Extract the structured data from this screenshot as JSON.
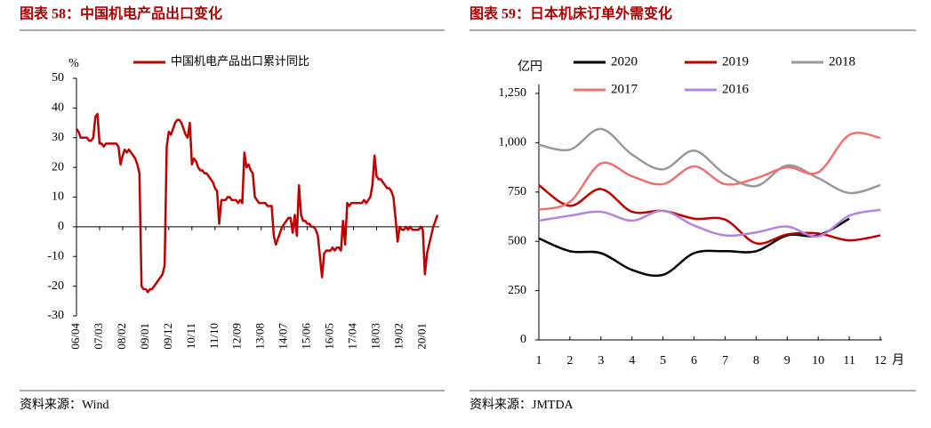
{
  "chart_data": [
    {
      "type": "line",
      "title": "图表 58：中国机电产品出口变化",
      "source": "资料来源：Wind",
      "y_label": "%",
      "categories": [
        "06/04",
        null,
        null,
        null,
        null,
        null,
        null,
        null,
        null,
        null,
        null,
        "07/03",
        null,
        null,
        null,
        null,
        null,
        null,
        null,
        null,
        null,
        null,
        "08/02",
        null,
        null,
        null,
        null,
        null,
        null,
        null,
        null,
        null,
        null,
        "09/01",
        null,
        null,
        null,
        null,
        null,
        null,
        null,
        null,
        null,
        null,
        "09/12",
        null,
        null,
        null,
        null,
        null,
        null,
        null,
        null,
        null,
        null,
        "10/11",
        null,
        null,
        null,
        null,
        null,
        null,
        null,
        null,
        null,
        null,
        "11/10",
        null,
        null,
        null,
        null,
        null,
        null,
        null,
        null,
        null,
        null,
        "12/09",
        null,
        null,
        null,
        null,
        null,
        null,
        null,
        null,
        null,
        null,
        "13/08",
        null,
        null,
        null,
        null,
        null,
        null,
        null,
        null,
        null,
        null,
        "14/07",
        null,
        null,
        null,
        null,
        null,
        null,
        null,
        null,
        null,
        null,
        "15/06",
        null,
        null,
        null,
        null,
        null,
        null,
        null,
        null,
        null,
        null,
        "16/05",
        null,
        null,
        null,
        null,
        null,
        null,
        null,
        null,
        null,
        null,
        "17/04",
        null,
        null,
        null,
        null,
        null,
        null,
        null,
        null,
        null,
        null,
        "18/03",
        null,
        null,
        null,
        null,
        null,
        null,
        null,
        null,
        null,
        null,
        "19/02",
        null,
        null,
        null,
        null,
        null,
        null,
        null,
        null,
        null,
        null,
        "20/01",
        null,
        null,
        null,
        null,
        null,
        null,
        null
      ],
      "series": [
        {
          "name": "中国机电产品出口累计同比",
          "color": "#c00000",
          "values": [
            33,
            32,
            30,
            30,
            30,
            30,
            29,
            29,
            30,
            37,
            38,
            28,
            28,
            27,
            28,
            28,
            28,
            28,
            28,
            28,
            27,
            21,
            24,
            26,
            25,
            26,
            25,
            24,
            23,
            21,
            18,
            -20,
            -21,
            -21,
            -22,
            -21,
            -21,
            -20,
            -19,
            -18,
            -17,
            -16,
            -13,
            27,
            32,
            31,
            33,
            35,
            36,
            36,
            35,
            33,
            31,
            30,
            35,
            21,
            23,
            22,
            20,
            19,
            19,
            18,
            18,
            17,
            16,
            15,
            13,
            12,
            1,
            9,
            9,
            9,
            10,
            10,
            9,
            9,
            9,
            8,
            9,
            8,
            25,
            20,
            21,
            19,
            18,
            10,
            9,
            8,
            8,
            8,
            8,
            7,
            7,
            7,
            -3,
            -6,
            -4,
            -2,
            0,
            1,
            2,
            3,
            3,
            -2,
            4,
            -3,
            14,
            4,
            2,
            2,
            1,
            1,
            0,
            0,
            -1,
            -3,
            -10,
            -17,
            -9,
            -8,
            -8,
            -8,
            -7,
            -8,
            -7,
            -7,
            -8,
            2,
            -6,
            8,
            7,
            8,
            8,
            8,
            8,
            8,
            8,
            9,
            8,
            9,
            10,
            14,
            24,
            17,
            16,
            16,
            15,
            14,
            13,
            13,
            12,
            10,
            3,
            -5,
            0,
            -1,
            -1,
            0,
            -1,
            0,
            -1,
            -1,
            -1,
            -1,
            0,
            -1,
            -16,
            -9,
            -6,
            -3,
            0,
            2,
            4
          ]
        }
      ],
      "ylim": [
        -30,
        50
      ],
      "yticks": [
        -30,
        -20,
        -10,
        0,
        10,
        20,
        30,
        40,
        50
      ],
      "grid": false
    },
    {
      "type": "line",
      "title": "图表 59：日本机床订单外需变化",
      "source": "资料来源：JMTDA",
      "y_label": "亿円",
      "x_label": "月",
      "smooth": true,
      "categories": [
        "1",
        "2",
        "3",
        "4",
        "5",
        "6",
        "7",
        "8",
        "9",
        "10",
        "11",
        "12"
      ],
      "series": [
        {
          "name": "2020",
          "color": "#000000",
          "values": [
            515,
            450,
            440,
            355,
            330,
            440,
            450,
            450,
            530,
            530,
            615,
            null
          ]
        },
        {
          "name": "2019",
          "color": "#c00000",
          "values": [
            785,
            680,
            765,
            650,
            655,
            615,
            610,
            490,
            535,
            540,
            505,
            530
          ]
        },
        {
          "name": "2018",
          "color": "#999999",
          "values": [
            990,
            965,
            1070,
            940,
            865,
            960,
            840,
            780,
            885,
            820,
            745,
            785
          ]
        },
        {
          "name": "2017",
          "color": "#f07070",
          "values": [
            660,
            700,
            895,
            830,
            790,
            880,
            790,
            820,
            875,
            850,
            1040,
            1025
          ]
        },
        {
          "name": "2016",
          "color": "#b485dc",
          "values": [
            605,
            630,
            650,
            605,
            655,
            580,
            530,
            545,
            575,
            525,
            630,
            660
          ]
        }
      ],
      "ylim": [
        0,
        1250
      ],
      "yticks": [
        0,
        250,
        500,
        750,
        {
          "value": 1000,
          "label": "1,000"
        },
        {
          "value": 1250,
          "label": "1,250"
        }
      ],
      "grid": false
    }
  ]
}
